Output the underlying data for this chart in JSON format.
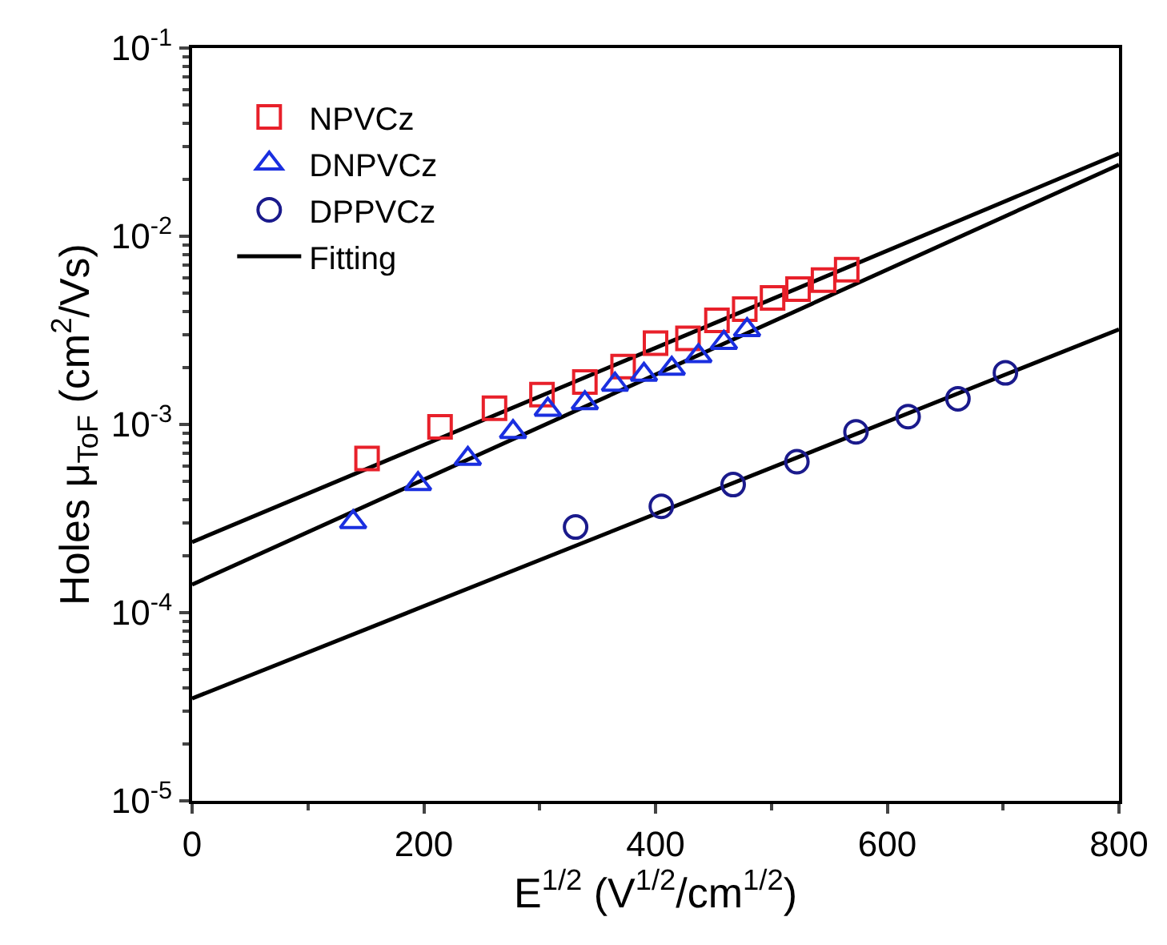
{
  "chart_data": {
    "type": "scatter",
    "xlabel": "E$^{1/2}$ (V$^{1/2}$/cm$^{1/2}$)",
    "ylabel": "Holes μ$_{ToF}$ (cm$^{2}$/Vs)",
    "log": "y",
    "legend": "top left",
    "xlim": [
      0,
      800
    ],
    "xticks": [
      0,
      200,
      400,
      600,
      800
    ],
    "ylim": [
      1e-05,
      0.1
    ],
    "yticks": [
      {
        "value": 1e-05,
        "label": "10$^{-5}$"
      },
      {
        "value": 0.0001,
        "label": "10$^{-4}$"
      },
      {
        "value": 0.001,
        "label": "10$^{-3}$"
      },
      {
        "value": 0.01,
        "label": "10$^{-2}$"
      },
      {
        "value": 0.1,
        "label": "10$^{-1}$"
      }
    ],
    "series": [
      {
        "name": "NPVCz",
        "marker": "square",
        "color": "#e8202a",
        "x": [
          151,
          214,
          261,
          302,
          339,
          372,
          400,
          428,
          453,
          477,
          501,
          523,
          545,
          565
        ],
        "values": [
          0.00066,
          0.00097,
          0.00122,
          0.00144,
          0.00168,
          0.00203,
          0.0027,
          0.00287,
          0.00357,
          0.0041,
          0.0047,
          0.00524,
          0.00585,
          0.00664
        ]
      },
      {
        "name": "DNPVCz",
        "marker": "triangle",
        "color": "#1a2fe0",
        "x": [
          139,
          195,
          238,
          277,
          307,
          339,
          365,
          390,
          414,
          437,
          459,
          479
        ],
        "values": [
          0.000303,
          0.000483,
          0.000658,
          0.000913,
          0.0012,
          0.0013,
          0.00163,
          0.00184,
          0.00198,
          0.00231,
          0.00272,
          0.00318
        ]
      },
      {
        "name": "DPPVCz",
        "marker": "circle",
        "color": "#1a1a8c",
        "x": [
          331,
          405,
          467,
          522,
          573,
          618,
          661,
          702
        ],
        "values": [
          0.000285,
          0.000367,
          0.000479,
          0.000634,
          0.000913,
          0.0011,
          0.00137,
          0.00188
        ]
      },
      {
        "name": "Fitting",
        "type": "line",
        "line_style": "solid",
        "color": "#000000",
        "x": [
          0,
          800
        ],
        "values": [
          0.000237,
          0.0275
        ]
      },
      {
        "type": "line",
        "line_style": "solid",
        "color": "#000000",
        "x": [
          0,
          800
        ],
        "values": [
          0.000141,
          0.024
        ]
      },
      {
        "type": "line",
        "line_style": "solid",
        "color": "#000000",
        "x": [
          0,
          800
        ],
        "values": [
          3.5e-05,
          0.0032
        ]
      }
    ]
  }
}
